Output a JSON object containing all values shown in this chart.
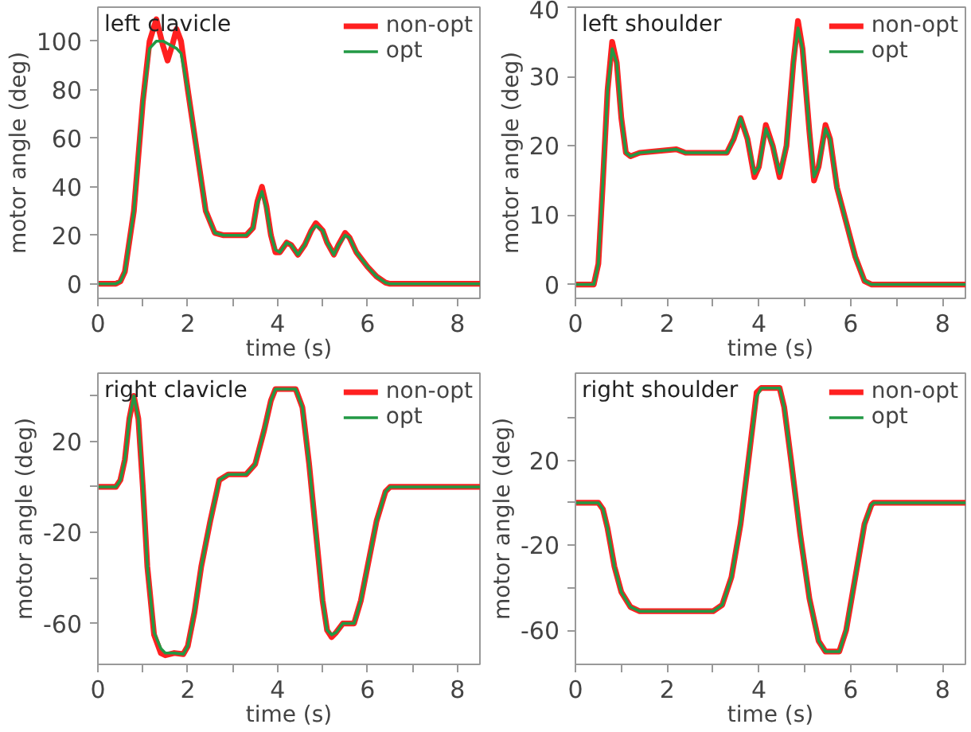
{
  "chart_data": [
    {
      "type": "line",
      "title": "left clavicle",
      "xlabel": "time (s)",
      "ylabel": "motor angle (deg)",
      "xlim": [
        0,
        8.5
      ],
      "ylim": [
        -6,
        114
      ],
      "xticks": [
        0,
        {
          "value": 1,
          "label": null
        },
        2,
        {
          "value": 3,
          "label": null
        },
        4,
        {
          "value": 5,
          "label": null
        },
        6,
        {
          "value": 7,
          "label": null
        },
        8
      ],
      "yticks": [
        0,
        20,
        40,
        60,
        80,
        100
      ],
      "grid": false,
      "legend": "top right",
      "marker": "none",
      "line_style": "solid",
      "x": [
        0,
        0.4,
        0.5,
        0.6,
        0.8,
        1.0,
        1.15,
        1.3,
        1.45,
        1.55,
        1.65,
        1.75,
        1.85,
        2.0,
        2.2,
        2.4,
        2.6,
        2.8,
        3.0,
        3.3,
        3.45,
        3.55,
        3.65,
        3.75,
        3.85,
        3.95,
        4.05,
        4.2,
        4.3,
        4.45,
        4.6,
        4.75,
        4.85,
        5.0,
        5.1,
        5.25,
        5.35,
        5.5,
        5.6,
        5.75,
        6.0,
        6.2,
        6.4,
        6.5,
        8.5
      ],
      "series": [
        {
          "name": "non-opt",
          "color": "#ff2020",
          "values": [
            0,
            0,
            1,
            5,
            30,
            75,
            100,
            109,
            98,
            92,
            98,
            105,
            100,
            80,
            55,
            30,
            21,
            20,
            20,
            20,
            23,
            34,
            40,
            32,
            20,
            13,
            13,
            17,
            16,
            12,
            16,
            22,
            25,
            22,
            17,
            12,
            16,
            21,
            19,
            13,
            7,
            3,
            0.5,
            0,
            0
          ]
        },
        {
          "name": "opt",
          "color": "#229944",
          "values": [
            0,
            0,
            1,
            5,
            30,
            75,
            97,
            100,
            100,
            99,
            98,
            97,
            95,
            80,
            55,
            30,
            21,
            20,
            20,
            20,
            23,
            33,
            38,
            31,
            20,
            14,
            13,
            17,
            16,
            12,
            16,
            22,
            24,
            22,
            17,
            12,
            16,
            20,
            19,
            13,
            7,
            3,
            0.5,
            0,
            0
          ]
        }
      ]
    },
    {
      "type": "line",
      "title": "left shoulder",
      "xlabel": "time (s)",
      "ylabel": "motor angle (deg)",
      "xlim": [
        0,
        8.5
      ],
      "ylim": [
        -2,
        40
      ],
      "xticks": [
        0,
        {
          "value": 1,
          "label": null
        },
        2,
        {
          "value": 3,
          "label": null
        },
        4,
        {
          "value": 5,
          "label": null
        },
        6,
        {
          "value": 7,
          "label": null
        },
        8
      ],
      "yticks": [
        0,
        10,
        20,
        30,
        40
      ],
      "grid": false,
      "legend": "top right",
      "marker": "none",
      "line_style": "solid",
      "x": [
        0,
        0.4,
        0.5,
        0.6,
        0.7,
        0.8,
        0.9,
        1.0,
        1.1,
        1.2,
        1.4,
        2.2,
        2.4,
        3.0,
        3.3,
        3.45,
        3.6,
        3.75,
        3.9,
        4.0,
        4.15,
        4.3,
        4.45,
        4.6,
        4.75,
        4.85,
        4.95,
        5.1,
        5.2,
        5.3,
        5.45,
        5.55,
        5.7,
        5.9,
        6.1,
        6.3,
        6.45,
        8.5
      ],
      "series": [
        {
          "name": "non-opt",
          "color": "#ff2020",
          "values": [
            0,
            0,
            3,
            15,
            28,
            35,
            32,
            24,
            19,
            18.5,
            19,
            19.5,
            19,
            19,
            19,
            21,
            24,
            21,
            15.5,
            17,
            23,
            20,
            15.5,
            20,
            32,
            38,
            34,
            22,
            15,
            17,
            23,
            21,
            14,
            9,
            4,
            0.5,
            0,
            0
          ]
        },
        {
          "name": "opt",
          "color": "#229944",
          "values": [
            0,
            0,
            3,
            15,
            28,
            34,
            32,
            24,
            19,
            18.5,
            19,
            19.5,
            19,
            19,
            19,
            21,
            24,
            21,
            16,
            17,
            22.5,
            20,
            16,
            20,
            32,
            37,
            34,
            22,
            15.5,
            17,
            22.5,
            21,
            14,
            9,
            4,
            0.5,
            0,
            0
          ]
        }
      ]
    },
    {
      "type": "line",
      "title": "right clavicle",
      "xlabel": "time (s)",
      "ylabel": "motor angle (deg)",
      "xlim": [
        0,
        8.5
      ],
      "ylim": [
        -78,
        50
      ],
      "xticks": [
        0,
        {
          "value": 1,
          "label": null
        },
        2,
        {
          "value": 3,
          "label": null
        },
        4,
        {
          "value": 5,
          "label": null
        },
        6,
        {
          "value": 7,
          "label": null
        },
        8
      ],
      "yticks": [
        {
          "value": 40,
          "label": null
        },
        20,
        {
          "value": 0,
          "label": null
        },
        -20,
        {
          "value": -40,
          "label": null
        },
        -60
      ],
      "grid": false,
      "legend": "top right",
      "marker": "none",
      "line_style": "solid",
      "x": [
        0,
        0.4,
        0.5,
        0.6,
        0.7,
        0.8,
        0.9,
        1.0,
        1.1,
        1.25,
        1.4,
        1.5,
        1.7,
        1.9,
        2.0,
        2.15,
        2.3,
        2.5,
        2.7,
        2.9,
        3.3,
        3.5,
        3.7,
        3.85,
        3.95,
        4.4,
        4.55,
        4.7,
        4.85,
        5.0,
        5.1,
        5.2,
        5.3,
        5.45,
        5.7,
        5.85,
        6.0,
        6.2,
        6.4,
        6.5,
        8.5
      ],
      "series": [
        {
          "name": "non-opt",
          "color": "#ff2020",
          "values": [
            0,
            0,
            3,
            12,
            30,
            40,
            30,
            0,
            -35,
            -65,
            -73,
            -74,
            -73,
            -73.5,
            -70,
            -55,
            -35,
            -15,
            3,
            5.5,
            5.5,
            10,
            25,
            38,
            43,
            43,
            35,
            10,
            -20,
            -50,
            -63,
            -66,
            -64,
            -60,
            -60,
            -50,
            -35,
            -15,
            -2,
            0,
            0
          ]
        },
        {
          "name": "opt",
          "color": "#229944",
          "values": [
            0,
            0,
            3,
            12,
            30,
            40,
            30,
            0,
            -35,
            -64,
            -71,
            -73,
            -73,
            -73.5,
            -70,
            -55,
            -35,
            -15,
            3,
            5.5,
            5.5,
            10,
            25,
            38,
            43,
            43,
            35,
            10,
            -20,
            -50,
            -63,
            -65,
            -64,
            -60,
            -60,
            -50,
            -35,
            -15,
            -2,
            0,
            0
          ]
        }
      ]
    },
    {
      "type": "line",
      "title": "right shoulder",
      "xlabel": "time (s)",
      "ylabel": "motor angle (deg)",
      "xlim": [
        0,
        8.5
      ],
      "ylim": [
        -76,
        61
      ],
      "xticks": [
        0,
        {
          "value": 1,
          "label": null
        },
        2,
        {
          "value": 3,
          "label": null
        },
        4,
        {
          "value": 5,
          "label": null
        },
        6,
        {
          "value": 7,
          "label": null
        },
        8
      ],
      "yticks": [
        {
          "value": 40,
          "label": null
        },
        20,
        {
          "value": 0,
          "label": null
        },
        -20,
        {
          "value": -40,
          "label": null
        },
        -60
      ],
      "grid": false,
      "legend": "top right",
      "marker": "none",
      "line_style": "solid",
      "x": [
        0,
        0.5,
        0.6,
        0.7,
        0.85,
        1.0,
        1.2,
        1.4,
        3.0,
        3.2,
        3.4,
        3.6,
        3.8,
        3.95,
        4.05,
        4.45,
        4.55,
        4.7,
        4.9,
        5.1,
        5.3,
        5.45,
        5.75,
        5.9,
        6.1,
        6.3,
        6.45,
        6.5,
        8.5
      ],
      "series": [
        {
          "name": "non-opt",
          "color": "#ff2020",
          "values": [
            0,
            0,
            -3,
            -12,
            -30,
            -42,
            -49,
            -51,
            -51,
            -48,
            -35,
            -10,
            25,
            52,
            54,
            54,
            45,
            20,
            -15,
            -45,
            -65,
            -70,
            -70,
            -60,
            -35,
            -10,
            -1,
            0,
            0
          ]
        },
        {
          "name": "opt",
          "color": "#229944",
          "values": [
            0,
            0,
            -3,
            -12,
            -30,
            -42,
            -49,
            -51,
            -51,
            -48,
            -35,
            -10,
            25,
            50,
            54,
            54,
            45,
            20,
            -15,
            -45,
            -65,
            -70,
            -70,
            -60,
            -35,
            -10,
            -1,
            0,
            0
          ]
        }
      ]
    }
  ]
}
